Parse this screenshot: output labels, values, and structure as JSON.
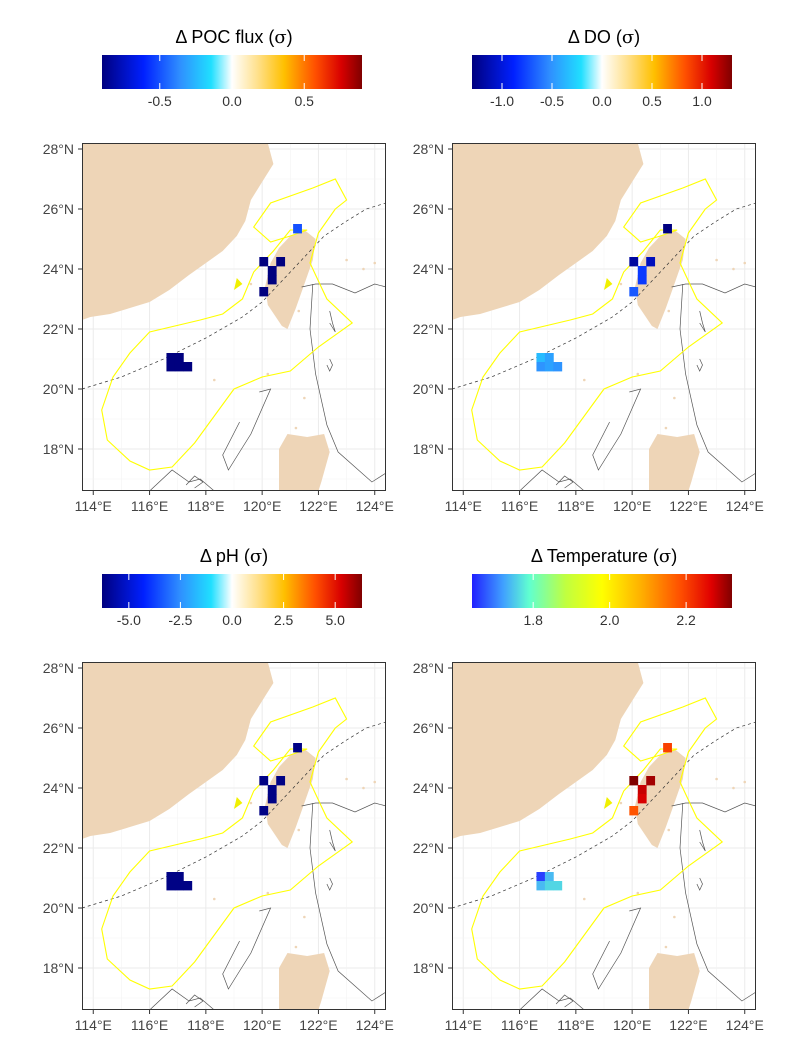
{
  "figure": {
    "lat_labels": [
      "28°N",
      "26°N",
      "24°N",
      "22°N",
      "20°N",
      "18°N"
    ],
    "lon_labels": [
      "114°E",
      "116°E",
      "118°E",
      "120°E",
      "122°E",
      "124°E"
    ],
    "lat_values": [
      28,
      26,
      24,
      22,
      20,
      18
    ],
    "lon_values": [
      114,
      116,
      118,
      120,
      122,
      124
    ],
    "extent": {
      "lon": [
        113.6,
        124.4
      ],
      "lat": [
        16.6,
        28.2
      ]
    },
    "colors": {
      "land": "#EED5B7",
      "boundary": "#FFFF00",
      "panel_border": "#333333",
      "grid": "#EBEBEB",
      "contour": "#555555",
      "dashed": "#333333"
    }
  },
  "panels": [
    {
      "id": "poc",
      "title_symbol": "Δ",
      "title_text": " POC flux (",
      "title_sigma": "σ",
      "title_close": ")",
      "colorbar": {
        "ticks": [
          "-0.5",
          "0.0",
          "0.5"
        ],
        "tick_values": [
          -0.5,
          0.0,
          0.5
        ],
        "range": [
          -0.9,
          0.9
        ],
        "scale": "diverging"
      },
      "cells": [
        {
          "lon": 116.6,
          "lat": 20.9,
          "v": -0.9
        },
        {
          "lon": 116.9,
          "lat": 20.9,
          "v": -0.9
        },
        {
          "lon": 116.6,
          "lat": 20.6,
          "v": -0.9
        },
        {
          "lon": 116.9,
          "lat": 20.6,
          "v": -0.9
        },
        {
          "lon": 117.2,
          "lat": 20.6,
          "v": -0.9
        },
        {
          "lon": 119.9,
          "lat": 24.1,
          "v": -0.9
        },
        {
          "lon": 120.5,
          "lat": 24.1,
          "v": -0.9
        },
        {
          "lon": 120.2,
          "lat": 23.8,
          "v": -0.9
        },
        {
          "lon": 120.2,
          "lat": 23.5,
          "v": -0.9
        },
        {
          "lon": 119.9,
          "lat": 23.1,
          "v": -0.9
        },
        {
          "lon": 121.1,
          "lat": 25.2,
          "v": -0.5
        }
      ]
    },
    {
      "id": "do",
      "title_symbol": "Δ",
      "title_text": " DO (",
      "title_sigma": "σ",
      "title_close": ")",
      "colorbar": {
        "ticks": [
          "-1.0",
          "-0.5",
          "0.0",
          "0.5",
          "1.0"
        ],
        "tick_values": [
          -1.0,
          -0.5,
          0.0,
          0.5,
          1.0
        ],
        "range": [
          -1.3,
          1.3
        ],
        "scale": "diverging"
      },
      "cells": [
        {
          "lon": 116.6,
          "lat": 20.9,
          "v": -0.35
        },
        {
          "lon": 116.9,
          "lat": 20.9,
          "v": -0.45
        },
        {
          "lon": 116.6,
          "lat": 20.6,
          "v": -0.5
        },
        {
          "lon": 116.9,
          "lat": 20.6,
          "v": -0.45
        },
        {
          "lon": 117.2,
          "lat": 20.6,
          "v": -0.5
        },
        {
          "lon": 119.9,
          "lat": 24.1,
          "v": -1.2
        },
        {
          "lon": 120.5,
          "lat": 24.1,
          "v": -1.1
        },
        {
          "lon": 120.2,
          "lat": 23.8,
          "v": -0.8
        },
        {
          "lon": 120.2,
          "lat": 23.5,
          "v": -0.8
        },
        {
          "lon": 119.9,
          "lat": 23.1,
          "v": -0.7
        },
        {
          "lon": 121.1,
          "lat": 25.2,
          "v": -1.3
        }
      ]
    },
    {
      "id": "ph",
      "title_symbol": "Δ",
      "title_text": " pH (",
      "title_sigma": "σ",
      "title_close": ")",
      "colorbar": {
        "ticks": [
          "-5.0",
          "-2.5",
          "0.0",
          "2.5",
          "5.0"
        ],
        "tick_values": [
          -5.0,
          -2.5,
          0.0,
          2.5,
          5.0
        ],
        "range": [
          -6.3,
          6.3
        ],
        "scale": "diverging"
      },
      "cells": [
        {
          "lon": 116.6,
          "lat": 20.9,
          "v": -6.2
        },
        {
          "lon": 116.9,
          "lat": 20.9,
          "v": -6.2
        },
        {
          "lon": 116.6,
          "lat": 20.6,
          "v": -6.2
        },
        {
          "lon": 116.9,
          "lat": 20.6,
          "v": -6.2
        },
        {
          "lon": 117.2,
          "lat": 20.6,
          "v": -6.2
        },
        {
          "lon": 119.9,
          "lat": 24.1,
          "v": -6.2
        },
        {
          "lon": 120.5,
          "lat": 24.1,
          "v": -6.2
        },
        {
          "lon": 120.2,
          "lat": 23.8,
          "v": -6.2
        },
        {
          "lon": 120.2,
          "lat": 23.5,
          "v": -6.2
        },
        {
          "lon": 119.9,
          "lat": 23.1,
          "v": -6.2
        },
        {
          "lon": 121.1,
          "lat": 25.2,
          "v": -6.2
        }
      ]
    },
    {
      "id": "temp",
      "title_symbol": "Δ",
      "title_text": " Temperature (",
      "title_sigma": "σ",
      "title_close": ")",
      "colorbar": {
        "ticks": [
          "1.8",
          "2.0",
          "2.2"
        ],
        "tick_values": [
          1.8,
          2.0,
          2.2
        ],
        "range": [
          1.64,
          2.32
        ],
        "scale": "sequential"
      },
      "cells": [
        {
          "lon": 116.6,
          "lat": 20.9,
          "v": 1.66
        },
        {
          "lon": 116.9,
          "lat": 20.9,
          "v": 1.74
        },
        {
          "lon": 116.6,
          "lat": 20.6,
          "v": 1.74
        },
        {
          "lon": 116.9,
          "lat": 20.6,
          "v": 1.76
        },
        {
          "lon": 117.2,
          "lat": 20.6,
          "v": 1.76
        },
        {
          "lon": 119.9,
          "lat": 24.1,
          "v": 2.32
        },
        {
          "lon": 120.5,
          "lat": 24.1,
          "v": 2.3
        },
        {
          "lon": 120.2,
          "lat": 23.8,
          "v": 2.28
        },
        {
          "lon": 120.2,
          "lat": 23.5,
          "v": 2.27
        },
        {
          "lon": 119.9,
          "lat": 23.1,
          "v": 2.18
        },
        {
          "lon": 121.1,
          "lat": 25.2,
          "v": 2.2
        }
      ]
    }
  ]
}
